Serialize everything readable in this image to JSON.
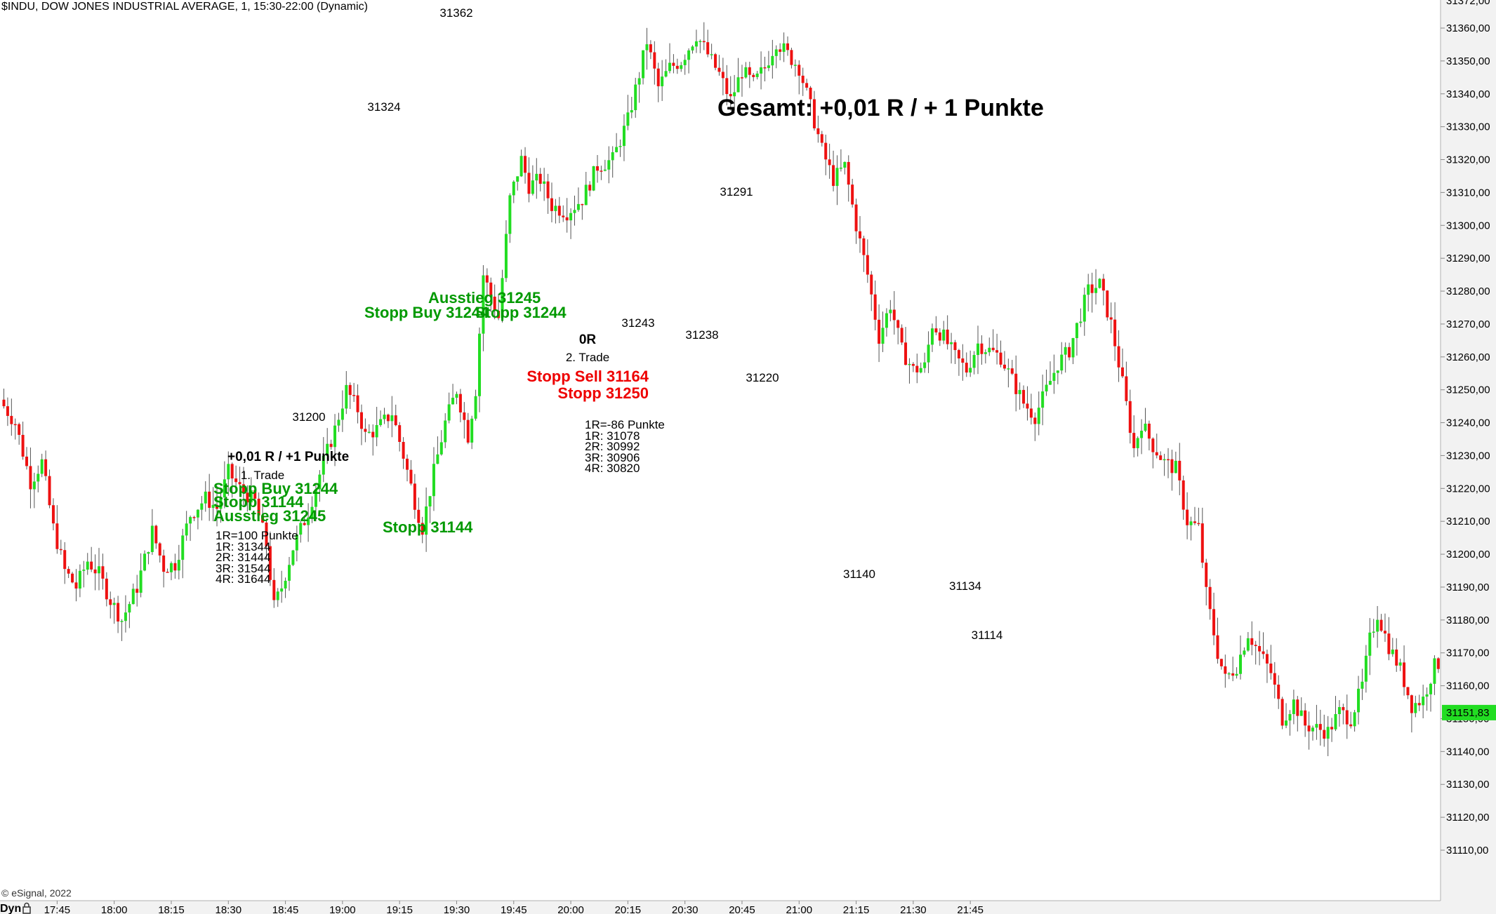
{
  "chart_data": {
    "type": "candlestick",
    "title": "$INDU, DOW JONES INDUSTRIAL AVERAGE, 1, 15:30-22:00 (Dynamic)",
    "copyright": "© eSignal, 2022",
    "corner_label": "Dyn",
    "ylim": [
      31104,
      31372
    ],
    "y_ticks": [
      "31110,00",
      "31120,00",
      "31130,00",
      "31140,00",
      "31150,00",
      "31160,00",
      "31170,00",
      "31180,00",
      "31190,00",
      "31200,00",
      "31210,00",
      "31220,00",
      "31230,00",
      "31240,00",
      "31250,00",
      "31260,00",
      "31270,00",
      "31280,00",
      "31290,00",
      "31300,00",
      "31310,00",
      "31320,00",
      "31330,00",
      "31340,00",
      "31350,00",
      "31360,00"
    ],
    "y_tick_values": [
      31110,
      31120,
      31130,
      31140,
      31150,
      31160,
      31170,
      31180,
      31190,
      31200,
      31210,
      31220,
      31230,
      31240,
      31250,
      31260,
      31270,
      31280,
      31290,
      31300,
      31310,
      31320,
      31330,
      31340,
      31350,
      31360
    ],
    "top_partial_label": "31372,00",
    "current_price": {
      "label": "31151,83",
      "value": 31151.83,
      "color": "#22dd22"
    },
    "x_labels": [
      "17:45",
      "18:00",
      "18:15",
      "18:30",
      "18:45",
      "19:00",
      "19:15",
      "19:30",
      "19:45",
      "20:00",
      "20:15",
      "20:30",
      "20:45",
      "21:00",
      "21:15",
      "21:30",
      "21:45"
    ],
    "bars_per_label": 15,
    "first_label_bar": 14,
    "up_color": "#22dd22",
    "down_color": "#ee1111",
    "close_path": [
      [
        0,
        31245
      ],
      [
        3,
        31240
      ],
      [
        7,
        31222
      ],
      [
        10,
        31228
      ],
      [
        13,
        31208
      ],
      [
        16,
        31195
      ],
      [
        19,
        31190
      ],
      [
        22,
        31198
      ],
      [
        25,
        31194
      ],
      [
        28,
        31186
      ],
      [
        31,
        31180
      ],
      [
        35,
        31190
      ],
      [
        39,
        31207
      ],
      [
        42,
        31196
      ],
      [
        45,
        31197
      ],
      [
        49,
        31212
      ],
      [
        53,
        31217
      ],
      [
        56,
        31214
      ],
      [
        59,
        31225
      ],
      [
        62,
        31220
      ],
      [
        66,
        31216
      ],
      [
        69,
        31203
      ],
      [
        71,
        31184
      ],
      [
        73,
        31190
      ],
      [
        76,
        31202
      ],
      [
        80,
        31213
      ],
      [
        84,
        31228
      ],
      [
        87,
        31238
      ],
      [
        90,
        31250
      ],
      [
        93,
        31244
      ],
      [
        95,
        31236
      ],
      [
        98,
        31238
      ],
      [
        102,
        31243
      ],
      [
        105,
        31230
      ],
      [
        108,
        31216
      ],
      [
        110,
        31208
      ],
      [
        113,
        31225
      ],
      [
        116,
        31240
      ],
      [
        119,
        31250
      ],
      [
        122,
        31236
      ],
      [
        124,
        31250
      ],
      [
        126,
        31285
      ],
      [
        130,
        31272
      ],
      [
        133,
        31308
      ],
      [
        136,
        31320
      ],
      [
        138,
        31312
      ],
      [
        141,
        31314
      ],
      [
        144,
        31306
      ],
      [
        148,
        31304
      ],
      [
        152,
        31308
      ],
      [
        156,
        31318
      ],
      [
        160,
        31320
      ],
      [
        164,
        31332
      ],
      [
        167,
        31346
      ],
      [
        169,
        31356
      ],
      [
        172,
        31342
      ],
      [
        175,
        31348
      ],
      [
        178,
        31350
      ],
      [
        182,
        31358
      ],
      [
        185,
        31352
      ],
      [
        188,
        31346
      ],
      [
        191,
        31338
      ],
      [
        194,
        31347
      ],
      [
        197,
        31343
      ],
      [
        200,
        31348
      ],
      [
        203,
        31356
      ],
      [
        206,
        31352
      ],
      [
        209,
        31348
      ],
      [
        212,
        31336
      ],
      [
        215,
        31323
      ],
      [
        218,
        31314
      ],
      [
        221,
        31318
      ],
      [
        224,
        31300
      ],
      [
        227,
        31285
      ],
      [
        230,
        31266
      ],
      [
        233,
        31276
      ],
      [
        236,
        31262
      ],
      [
        239,
        31256
      ],
      [
        242,
        31257
      ],
      [
        244,
        31270
      ],
      [
        247,
        31266
      ],
      [
        250,
        31260
      ],
      [
        253,
        31256
      ],
      [
        256,
        31264
      ],
      [
        259,
        31262
      ],
      [
        262,
        31260
      ],
      [
        265,
        31253
      ],
      [
        268,
        31246
      ],
      [
        271,
        31242
      ],
      [
        274,
        31250
      ],
      [
        277,
        31258
      ],
      [
        280,
        31262
      ],
      [
        283,
        31273
      ],
      [
        285,
        31280
      ],
      [
        288,
        31282
      ],
      [
        291,
        31270
      ],
      [
        294,
        31252
      ],
      [
        297,
        31232
      ],
      [
        299,
        31240
      ],
      [
        302,
        31233
      ],
      [
        305,
        31228
      ],
      [
        308,
        31226
      ],
      [
        311,
        31210
      ],
      [
        314,
        31208
      ],
      [
        316,
        31188
      ],
      [
        319,
        31170
      ],
      [
        321,
        31162
      ],
      [
        324,
        31166
      ],
      [
        327,
        31176
      ],
      [
        330,
        31170
      ],
      [
        333,
        31164
      ],
      [
        336,
        31150
      ],
      [
        339,
        31155
      ],
      [
        342,
        31148
      ],
      [
        345,
        31147
      ],
      [
        348,
        31146
      ],
      [
        351,
        31152
      ],
      [
        354,
        31150
      ],
      [
        357,
        31160
      ],
      [
        359,
        31174
      ],
      [
        361,
        31182
      ],
      [
        364,
        31172
      ],
      [
        367,
        31165
      ],
      [
        370,
        31154
      ],
      [
        373,
        31156
      ],
      [
        376,
        31166
      ],
      [
        379,
        31168
      ],
      [
        382,
        31140
      ],
      [
        385,
        31158
      ],
      [
        387,
        31166
      ],
      [
        390,
        31144
      ],
      [
        393,
        31130
      ],
      [
        396,
        31128
      ],
      [
        398,
        31120
      ],
      [
        401,
        31128
      ],
      [
        403,
        31151
      ]
    ],
    "annotations": [
      {
        "text": "31362",
        "color": "#000000",
        "bold": false,
        "size": 17,
        "x": 650,
        "y": 24,
        "anchor": "middle"
      },
      {
        "text": "31324",
        "color": "#000000",
        "bold": false,
        "size": 17,
        "x": 547,
        "y": 158,
        "anchor": "middle"
      },
      {
        "text": "31200",
        "color": "#000000",
        "bold": false,
        "size": 17,
        "x": 440,
        "y": 600,
        "anchor": "middle"
      },
      {
        "text": "31291",
        "color": "#000000",
        "bold": false,
        "size": 17,
        "x": 1049,
        "y": 279,
        "anchor": "middle"
      },
      {
        "text": "31243",
        "color": "#000000",
        "bold": false,
        "size": 17,
        "x": 909,
        "y": 466,
        "anchor": "middle"
      },
      {
        "text": "31238",
        "color": "#000000",
        "bold": false,
        "size": 17,
        "x": 1000,
        "y": 483,
        "anchor": "middle"
      },
      {
        "text": "31220",
        "color": "#000000",
        "bold": false,
        "size": 17,
        "x": 1086,
        "y": 544,
        "anchor": "middle"
      },
      {
        "text": "31140",
        "color": "#000000",
        "bold": false,
        "size": 17,
        "x": 1224,
        "y": 824,
        "anchor": "middle"
      },
      {
        "text": "31134",
        "color": "#000000",
        "bold": false,
        "size": 17,
        "x": 1375,
        "y": 841,
        "anchor": "middle"
      },
      {
        "text": "31114",
        "color": "#000000",
        "bold": false,
        "size": 17,
        "x": 1406,
        "y": 911,
        "anchor": "middle"
      },
      {
        "text": "Gesamt: +0,01 R / + 1 Punkte",
        "color": "#000000",
        "bold": true,
        "size": 34,
        "x": 1022,
        "y": 165,
        "anchor": "start"
      },
      {
        "text": "Ausstieg 31245",
        "color": "#009900",
        "bold": true,
        "size": 22,
        "x": 610,
        "y": 432,
        "anchor": "start"
      },
      {
        "text": "Stopp Buy 31244",
        "color": "#009900",
        "bold": true,
        "size": 22,
        "x": 519,
        "y": 453,
        "anchor": "start"
      },
      {
        "text": "Stopp 31244",
        "color": "#009900",
        "bold": true,
        "size": 22,
        "x": 677,
        "y": 453,
        "anchor": "start"
      },
      {
        "text": "0R",
        "color": "#000000",
        "bold": true,
        "size": 19,
        "x": 837,
        "y": 490,
        "anchor": "middle"
      },
      {
        "text": "2. Trade",
        "color": "#000000",
        "bold": false,
        "size": 17,
        "x": 837,
        "y": 515,
        "anchor": "middle"
      },
      {
        "text": "Stopp Sell 31164",
        "color": "#ee0000",
        "bold": true,
        "size": 22,
        "x": 924,
        "y": 544,
        "anchor": "end"
      },
      {
        "text": "Stopp 31250",
        "color": "#ee0000",
        "bold": true,
        "size": 22,
        "x": 924,
        "y": 568,
        "anchor": "end"
      },
      {
        "text": "1R=-86 Punkte",
        "color": "#000000",
        "bold": false,
        "size": 17,
        "x": 833,
        "y": 611,
        "anchor": "start"
      },
      {
        "text": "1R: 31078",
        "color": "#000000",
        "bold": false,
        "size": 17,
        "x": 833,
        "y": 627,
        "anchor": "start"
      },
      {
        "text": "2R: 30992",
        "color": "#000000",
        "bold": false,
        "size": 17,
        "x": 833,
        "y": 642,
        "anchor": "start"
      },
      {
        "text": "3R: 30906",
        "color": "#000000",
        "bold": false,
        "size": 17,
        "x": 833,
        "y": 658,
        "anchor": "start"
      },
      {
        "text": "4R: 30820",
        "color": "#000000",
        "bold": false,
        "size": 17,
        "x": 833,
        "y": 673,
        "anchor": "start"
      },
      {
        "text": "+0,01 R / +1 Punkte",
        "color": "#000000",
        "bold": true,
        "size": 19,
        "x": 324,
        "y": 657,
        "anchor": "start"
      },
      {
        "text": "1. Trade",
        "color": "#000000",
        "bold": false,
        "size": 17,
        "x": 374,
        "y": 683,
        "anchor": "middle"
      },
      {
        "text": "Stopp Buy 31244",
        "color": "#009900",
        "bold": true,
        "size": 22,
        "x": 304,
        "y": 704,
        "anchor": "start"
      },
      {
        "text": "Stopp 31144",
        "color": "#009900",
        "bold": true,
        "size": 22,
        "x": 304,
        "y": 723,
        "anchor": "start"
      },
      {
        "text": "Ausstieg 31245",
        "color": "#009900",
        "bold": true,
        "size": 22,
        "x": 304,
        "y": 743,
        "anchor": "start"
      },
      {
        "text": "Stopp 31144",
        "color": "#009900",
        "bold": true,
        "size": 22,
        "x": 545,
        "y": 759,
        "anchor": "start"
      },
      {
        "text": "1R=100 Punkte",
        "color": "#000000",
        "bold": false,
        "size": 17,
        "x": 307,
        "y": 769,
        "anchor": "start"
      },
      {
        "text": "1R: 31344",
        "color": "#000000",
        "bold": false,
        "size": 17,
        "x": 307,
        "y": 785,
        "anchor": "start"
      },
      {
        "text": "2R: 31444",
        "color": "#000000",
        "bold": false,
        "size": 17,
        "x": 307,
        "y": 800,
        "anchor": "start"
      },
      {
        "text": "3R: 31544",
        "color": "#000000",
        "bold": false,
        "size": 17,
        "x": 307,
        "y": 816,
        "anchor": "start"
      },
      {
        "text": "4R: 31644",
        "color": "#000000",
        "bold": false,
        "size": 17,
        "x": 307,
        "y": 831,
        "anchor": "start"
      }
    ]
  }
}
